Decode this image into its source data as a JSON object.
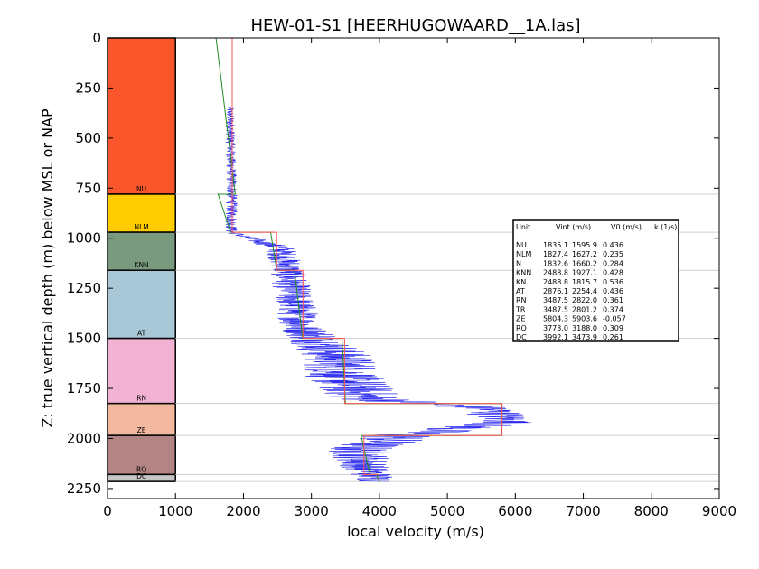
{
  "chart_data": {
    "type": "line",
    "title": "HEW-01-S1 [HEERHUGOWAARD__1A.las]",
    "xlabel": "local velocity (m/s)",
    "ylabel": "Z: true vertical depth (m) below MSL or NAP",
    "xlim": [
      0,
      9000
    ],
    "ylim": [
      2300,
      0
    ],
    "xticks": [
      "0",
      "1000",
      "2000",
      "3000",
      "4000",
      "5000",
      "6000",
      "7000",
      "8000",
      "9000"
    ],
    "yticks": [
      "0",
      "250",
      "500",
      "750",
      "1000",
      "1250",
      "1500",
      "1750",
      "2000",
      "2250"
    ],
    "grid": "horizontal at unit boundaries",
    "legend": "none",
    "units": [
      {
        "name": "NU",
        "top": 0,
        "base": 780,
        "color": "#f9562b"
      },
      {
        "name": "NLM",
        "top": 780,
        "base": 970,
        "color": "#ffcc00"
      },
      {
        "name": "KNN",
        "top": 970,
        "base": 1160,
        "color": "#7a9a80"
      },
      {
        "name": "AT",
        "top": 1160,
        "base": 1500,
        "color": "#a8c8d8"
      },
      {
        "name": "RN",
        "top": 1500,
        "base": 1825,
        "color": "#f2b2d4"
      },
      {
        "name": "ZE",
        "top": 1825,
        "base": 1985,
        "color": "#f2b9a0"
      },
      {
        "name": "RO",
        "top": 1985,
        "base": 2180,
        "color": "#b38484"
      },
      {
        "name": "DC",
        "top": 2180,
        "base": 2215,
        "color": "#c6c6c6"
      }
    ],
    "vint_series": {
      "name": "Vint",
      "color": "#ff5555",
      "steps": [
        {
          "top": 0,
          "base": 970,
          "v": 1835
        },
        {
          "top": 970,
          "base": 1160,
          "v": 2489
        },
        {
          "top": 1160,
          "base": 1500,
          "v": 2876
        },
        {
          "top": 1500,
          "base": 1825,
          "v": 3488
        },
        {
          "top": 1825,
          "base": 1985,
          "v": 5804
        },
        {
          "top": 1985,
          "base": 2180,
          "v": 3773
        },
        {
          "top": 2180,
          "base": 2215,
          "v": 3992
        }
      ]
    },
    "model_series": {
      "name": "V0 + k z",
      "color": "#228b22",
      "points": [
        [
          1596,
          0
        ],
        [
          1880,
          780
        ],
        [
          1627,
          780
        ],
        [
          1810,
          970
        ],
        [
          2400,
          970
        ],
        [
          2490,
          1160
        ],
        [
          2750,
          1160
        ],
        [
          2870,
          1500
        ],
        [
          3450,
          1500
        ],
        [
          3500,
          1825
        ],
        [
          5800,
          1825
        ],
        [
          5800,
          1985
        ],
        [
          3730,
          1985
        ],
        [
          3860,
          2180
        ],
        [
          3950,
          2180
        ],
        [
          4010,
          2215
        ]
      ]
    },
    "log_series": {
      "name": "log velocity",
      "color": "#2222ee",
      "profile": [
        [
          350,
          1800,
          60
        ],
        [
          500,
          1810,
          70
        ],
        [
          780,
          1830,
          80
        ],
        [
          970,
          1820,
          90
        ],
        [
          1050,
          2550,
          220
        ],
        [
          1160,
          2650,
          260
        ],
        [
          1300,
          2750,
          300
        ],
        [
          1450,
          2850,
          320
        ],
        [
          1500,
          3100,
          450
        ],
        [
          1600,
          3400,
          550
        ],
        [
          1700,
          3500,
          600
        ],
        [
          1800,
          3800,
          550
        ],
        [
          1850,
          5600,
          450
        ],
        [
          1920,
          5900,
          400
        ],
        [
          1980,
          4400,
          600
        ],
        [
          2050,
          3700,
          500
        ],
        [
          2150,
          3800,
          350
        ],
        [
          2215,
          4000,
          300
        ]
      ]
    },
    "table": {
      "header": [
        "Unit",
        "Vint (m/s)",
        "V0 (m/s)",
        "k (1/s)"
      ],
      "rows": [
        [
          "NU",
          "1835.1",
          "1595.9",
          "0.436"
        ],
        [
          "NLM",
          "1827.4",
          "1627.2",
          "0.235"
        ],
        [
          "N",
          "1832.6",
          "1660.2",
          "0.284"
        ],
        [
          "KNN",
          "2488.8",
          "1927.1",
          "0.428"
        ],
        [
          "KN",
          "2488.8",
          "1815.7",
          "0.536"
        ],
        [
          "AT",
          "2876.1",
          "2254.4",
          "0.436"
        ],
        [
          "RN",
          "3487.5",
          "2822.0",
          "0.361"
        ],
        [
          "TR",
          "3487.5",
          "2801.2",
          "0.374"
        ],
        [
          "ZE",
          "5804.3",
          "5903.6",
          "-0.057"
        ],
        [
          "RO",
          "3773.0",
          "3188.0",
          "0.309"
        ],
        [
          "DC",
          "3992.1",
          "3473.9",
          "0.261"
        ]
      ]
    }
  }
}
